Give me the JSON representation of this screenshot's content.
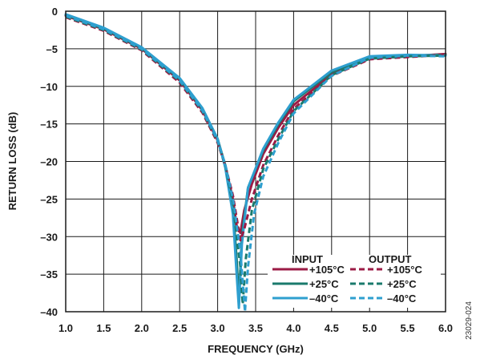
{
  "chart_data": {
    "type": "line",
    "title": "",
    "xlabel": "FREQUENCY (GHz)",
    "ylabel": "RETURN LOSS (dB)",
    "xlim": [
      1.0,
      6.0
    ],
    "ylim": [
      -40,
      0
    ],
    "xticks": [
      "1.0",
      "1.5",
      "2.0",
      "2.5",
      "3.0",
      "3.5",
      "4.0",
      "4.5",
      "5.0",
      "5.5",
      "6.0"
    ],
    "yticks": [
      "0",
      "–5",
      "–10",
      "–15",
      "–20",
      "–25",
      "–30",
      "–35",
      "–40"
    ],
    "grid": true,
    "legend_position": "bottom-right",
    "legend_groups": [
      "INPUT",
      "OUTPUT"
    ],
    "figure_id": "23029-024",
    "series": [
      {
        "name": "+105°C",
        "group": "INPUT",
        "color": "#9b1b45",
        "dash": "solid",
        "x": [
          1.0,
          1.5,
          2.0,
          2.5,
          2.8,
          3.0,
          3.1,
          3.2,
          3.25,
          3.3,
          3.35,
          3.45,
          3.6,
          3.8,
          4.0,
          4.5,
          5.0,
          5.5,
          6.0
        ],
        "y": [
          -0.6,
          -2.4,
          -5.0,
          -9.2,
          -13.2,
          -17.2,
          -20.5,
          -25.0,
          -28.5,
          -29.5,
          -26.5,
          -23.0,
          -19.0,
          -15.5,
          -12.5,
          -8.4,
          -6.3,
          -6.0,
          -5.7
        ]
      },
      {
        "name": "+25°C",
        "group": "INPUT",
        "color": "#1a7a6c",
        "dash": "solid",
        "x": [
          1.0,
          1.5,
          2.0,
          2.5,
          2.8,
          3.0,
          3.1,
          3.2,
          3.25,
          3.28,
          3.32,
          3.4,
          3.6,
          3.8,
          4.0,
          4.5,
          5.0,
          5.5,
          6.0
        ],
        "y": [
          -0.5,
          -2.3,
          -4.9,
          -9.0,
          -13.0,
          -17.0,
          -20.5,
          -26.0,
          -33.0,
          -38.5,
          -30.0,
          -23.5,
          -18.5,
          -15.0,
          -12.0,
          -8.1,
          -6.1,
          -5.9,
          -5.8
        ]
      },
      {
        "name": "–40°C",
        "group": "INPUT",
        "color": "#2e9fcf",
        "dash": "solid",
        "x": [
          1.0,
          1.5,
          2.0,
          2.5,
          2.8,
          3.0,
          3.1,
          3.2,
          3.25,
          3.28,
          3.32,
          3.4,
          3.6,
          3.8,
          4.0,
          4.5,
          5.0,
          5.5,
          6.0
        ],
        "y": [
          -0.4,
          -2.2,
          -4.8,
          -8.9,
          -12.9,
          -17.0,
          -20.8,
          -27.0,
          -35.0,
          -39.5,
          -31.0,
          -23.5,
          -18.3,
          -14.8,
          -11.8,
          -7.9,
          -6.0,
          -5.8,
          -5.9
        ]
      },
      {
        "name": "+105°C",
        "group": "OUTPUT",
        "color": "#9b1b45",
        "dash": "dashed",
        "x": [
          1.0,
          1.5,
          2.0,
          2.5,
          2.8,
          3.0,
          3.1,
          3.2,
          3.3,
          3.35,
          3.45,
          3.6,
          3.8,
          4.0,
          4.5,
          5.0,
          5.5,
          6.0
        ],
        "y": [
          -0.8,
          -2.6,
          -5.2,
          -9.5,
          -13.5,
          -17.5,
          -20.5,
          -24.5,
          -30.5,
          -29.0,
          -25.0,
          -20.5,
          -16.5,
          -13.0,
          -8.6,
          -6.4,
          -6.1,
          -5.8
        ]
      },
      {
        "name": "+25°C",
        "group": "OUTPUT",
        "color": "#1a7a6c",
        "dash": "dashed",
        "x": [
          1.0,
          1.5,
          2.0,
          2.5,
          2.8,
          3.0,
          3.1,
          3.2,
          3.3,
          3.33,
          3.37,
          3.45,
          3.6,
          3.8,
          4.0,
          4.5,
          5.0,
          5.5,
          6.0
        ],
        "y": [
          -0.7,
          -2.5,
          -5.1,
          -9.3,
          -13.3,
          -17.3,
          -20.5,
          -25.5,
          -34.0,
          -39.0,
          -33.0,
          -26.5,
          -21.0,
          -17.0,
          -13.3,
          -8.5,
          -6.3,
          -6.0,
          -5.9
        ]
      },
      {
        "name": "–40°C",
        "group": "OUTPUT",
        "color": "#2e9fcf",
        "dash": "dashed",
        "x": [
          1.0,
          1.5,
          2.0,
          2.5,
          2.8,
          3.0,
          3.1,
          3.2,
          3.3,
          3.36,
          3.4,
          3.48,
          3.6,
          3.8,
          4.0,
          4.5,
          5.0,
          5.5,
          6.0
        ],
        "y": [
          -0.6,
          -2.4,
          -5.0,
          -9.2,
          -13.2,
          -17.2,
          -20.4,
          -25.0,
          -32.0,
          -40.0,
          -34.0,
          -27.0,
          -22.0,
          -17.5,
          -13.6,
          -8.6,
          -6.2,
          -5.9,
          -6.0
        ]
      }
    ]
  }
}
